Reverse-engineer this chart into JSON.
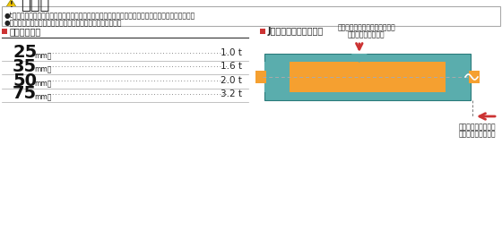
{
  "title": "注　意",
  "bg_color": "#ffffff",
  "warning_texts": [
    "●tーヨーのスリングベルトは十分な安全係数がありますが、最大使用荷重以上は吹らないで下さい。",
    "●吹り角度による使用荷重表をご参照の上、使用して下さい。"
  ],
  "left_section_title": "最大使用荷重",
  "accent_color": "#cc3333",
  "rows": [
    {
      "size": "25",
      "unit": "mm幅",
      "value": "1.0 t"
    },
    {
      "size": "35",
      "unit": "mm幅",
      "value": "1.6 t"
    },
    {
      "size": "50",
      "unit": "mm幅",
      "value": "2.0 t"
    },
    {
      "size": "75",
      "unit": "mm幅",
      "value": "3.2 t"
    }
  ],
  "right_section_title": "Jスリングベルト断面図",
  "diagram_teal": "#5aadad",
  "diagram_teal_dark": "#3d8a8a",
  "diagram_orange": "#f5a030",
  "top_annotation_line1": "厚みの方向の亀裂・摩耗などは",
  "top_annotation_line2": "ここまでくれば危険",
  "bottom_annotation_line1": "幅方向の亀裂などは",
  "bottom_annotation_line2": "ここまでくれば危険",
  "arrow_color": "#cc3333",
  "warn_bullet_color": "#cc3333"
}
